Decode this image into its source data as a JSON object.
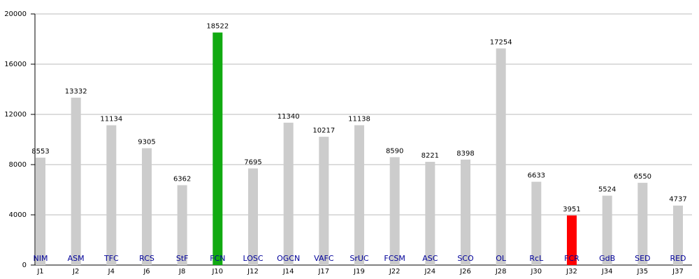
{
  "chart_data": {
    "type": "bar",
    "categories": [
      "J1",
      "J2",
      "J4",
      "J6",
      "J8",
      "J10",
      "J12",
      "J14",
      "J17",
      "J19",
      "J22",
      "J24",
      "J26",
      "J28",
      "J30",
      "J32",
      "J34",
      "J35",
      "J37"
    ],
    "labels": [
      "NIM",
      "ASM",
      "TFC",
      "RCS",
      "StF",
      "FCN",
      "LOSC",
      "OGCN",
      "VAFC",
      "SrUC",
      "FCSM",
      "ASC",
      "SCO",
      "OL",
      "RcL",
      "FCR",
      "GdB",
      "SED",
      "RED"
    ],
    "values": [
      8553,
      13332,
      11134,
      9305,
      6362,
      18522,
      7695,
      11340,
      10217,
      11138,
      8590,
      8221,
      8398,
      17254,
      6633,
      3951,
      5524,
      6550,
      4737
    ],
    "colors": [
      "#cccccc",
      "#cccccc",
      "#cccccc",
      "#cccccc",
      "#cccccc",
      "#11aa11",
      "#cccccc",
      "#cccccc",
      "#cccccc",
      "#cccccc",
      "#cccccc",
      "#cccccc",
      "#cccccc",
      "#cccccc",
      "#cccccc",
      "#ff0000",
      "#cccccc",
      "#cccccc",
      "#cccccc"
    ],
    "ylim": [
      0,
      20000
    ],
    "yticks": [
      0,
      4000,
      8000,
      12000,
      16000,
      20000
    ],
    "grid": true
  }
}
